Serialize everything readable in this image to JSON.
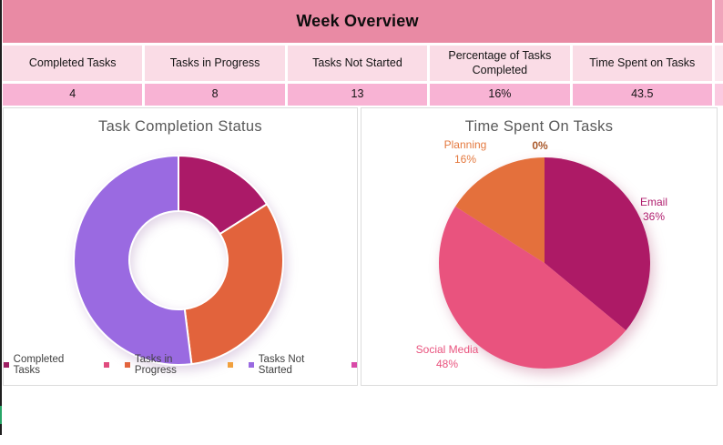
{
  "header": {
    "title": "Week Overview"
  },
  "summary_table": {
    "columns": [
      {
        "header": "Completed Tasks",
        "value": "4"
      },
      {
        "header": "Tasks in Progress",
        "value": "8"
      },
      {
        "header": "Tasks Not Started",
        "value": "13"
      },
      {
        "header": "Percentage of Tasks Completed",
        "value": "16%"
      },
      {
        "header": "Time Spent on Tasks",
        "value": "43.5"
      }
    ]
  },
  "chart_data": [
    {
      "type": "donut",
      "title": "Task Completion Status",
      "categories": [
        "Completed Tasks",
        "Tasks in Progress",
        "Tasks Not Started"
      ],
      "values": [
        4,
        8,
        13
      ],
      "percent_of_total": [
        16,
        32,
        52
      ],
      "colors": [
        "#ab1a68",
        "#e2633c",
        "#9a6ae1"
      ],
      "start_angle_deg": 0,
      "direction": "clockwise",
      "hole_ratio": 0.47,
      "legend_position": "bottom",
      "legend": [
        {
          "label": "Completed Tasks",
          "color": "#9e1f63"
        },
        {
          "label": "",
          "color": "#e04b7e"
        },
        {
          "label": "Tasks in Progress",
          "color": "#e2633c"
        },
        {
          "label": "",
          "color": "#f1a03e"
        },
        {
          "label": "Tasks Not Started",
          "color": "#9a6ae1"
        },
        {
          "label": "",
          "color": "#d94aa8"
        }
      ]
    },
    {
      "type": "pie",
      "title": "Time Spent On Tasks",
      "categories": [
        "Email",
        "Social Media",
        "Planning",
        ""
      ],
      "values": [
        36,
        48,
        16,
        0
      ],
      "unit": "%",
      "colors": [
        "#ad1a66",
        "#e9537e",
        "#e4703c"
      ],
      "start_angle_deg": 0,
      "direction": "clockwise",
      "labels": {
        "email": {
          "line1": "Email",
          "line2": "36%",
          "color": "#b01e6e"
        },
        "social_media": {
          "line1": "Social Media",
          "line2": "48%",
          "color": "#e9537e"
        },
        "planning": {
          "line1": "Planning",
          "line2": "16%",
          "color": "#e4793f"
        },
        "zero": {
          "line1": "0%",
          "color": "#a9582a"
        }
      }
    }
  ]
}
